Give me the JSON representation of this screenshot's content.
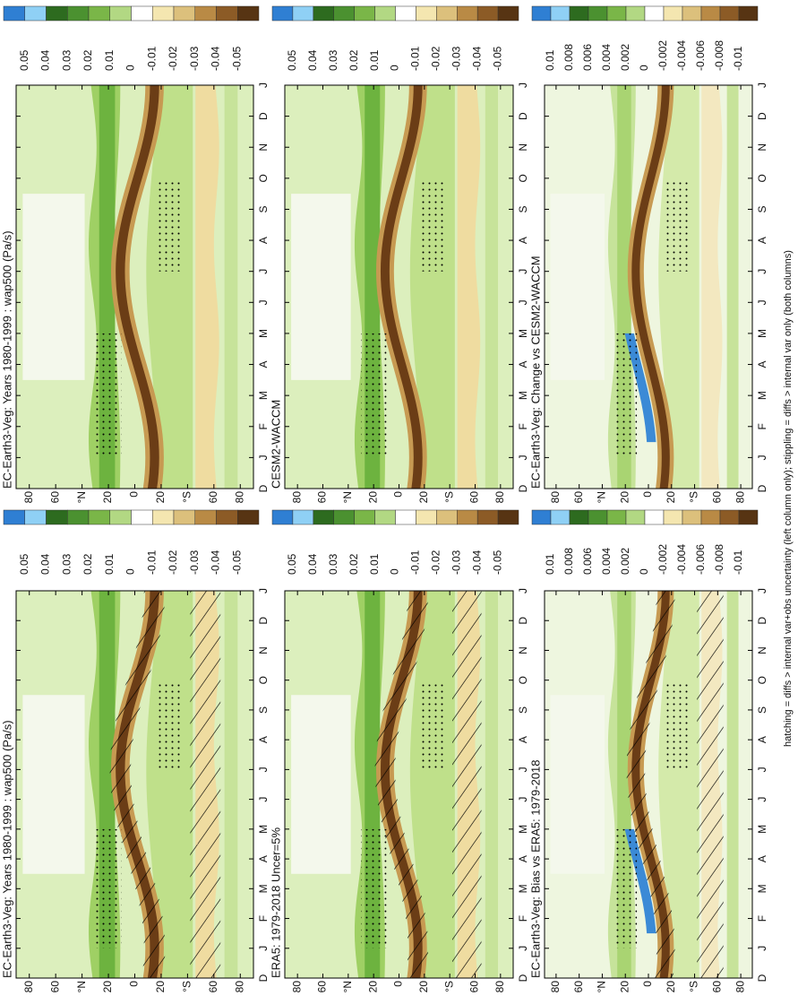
{
  "panels": [
    {
      "title": "EC-Earth3-Veg: Years 1980-1999 : wap500 (Pa/s)",
      "colorbar": [
        "0.05",
        "0.04",
        "0.03",
        "0.02",
        "0.01",
        "0",
        "-0.01",
        "-0.02",
        "-0.03",
        "-0.04",
        "-0.05"
      ]
    },
    {
      "title": "ERA5: 1979-2018 Uncer=5%",
      "colorbar": [
        "0.05",
        "0.04",
        "0.03",
        "0.02",
        "0.01",
        "0",
        "-0.01",
        "-0.02",
        "-0.03",
        "-0.04",
        "-0.05"
      ]
    },
    {
      "title": "EC-Earth3-Veg: Bias vs ERA5: 1979-2018",
      "colorbar": [
        "0.01",
        "0.008",
        "0.006",
        "0.004",
        "0.002",
        "0",
        "-0.002",
        "-0.004",
        "-0.006",
        "-0.008",
        "-0.01"
      ]
    },
    {
      "title": "EC-Earth3-Veg: Years 1980-1999 : wap500 (Pa/s)",
      "colorbar": [
        "0.05",
        "0.04",
        "0.03",
        "0.02",
        "0.01",
        "0",
        "-0.01",
        "-0.02",
        "-0.03",
        "-0.04",
        "-0.05"
      ]
    },
    {
      "title": "CESM2-WACCM",
      "colorbar": [
        "0.05",
        "0.04",
        "0.03",
        "0.02",
        "0.01",
        "0",
        "-0.01",
        "-0.02",
        "-0.03",
        "-0.04",
        "-0.05"
      ]
    },
    {
      "title": "EC-Earth3-Veg: Change vs CESM2-WACCM",
      "colorbar": [
        "0.01",
        "0.008",
        "0.006",
        "0.004",
        "0.002",
        "0",
        "-0.002",
        "-0.004",
        "-0.006",
        "-0.008",
        "-0.01"
      ]
    }
  ],
  "lat_labels": [
    "80",
    "60",
    "°N",
    "20",
    "0",
    "20",
    "°S",
    "60",
    "80"
  ],
  "months": [
    "D",
    "J",
    "F",
    "M",
    "A",
    "M",
    "J",
    "J",
    "A",
    "S",
    "O",
    "N",
    "D",
    "J"
  ],
  "footer": "hatching = diffs > internal var+obs uncertainty (left column only); stippling = diffs > internal var only (both columns)"
}
